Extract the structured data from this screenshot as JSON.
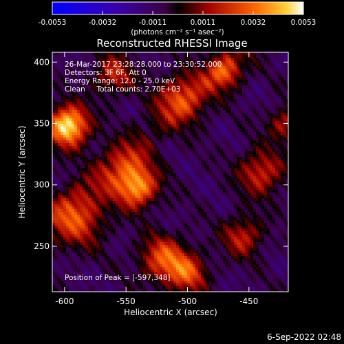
{
  "colorbar": {
    "ticks": [
      "-0.0053",
      "-0.0032",
      "-0.0011",
      "0.0011",
      "0.0032",
      "0.0053"
    ],
    "units_label": "(photons cm⁻² s⁻¹ asec⁻²)"
  },
  "chart_data": {
    "type": "heatmap",
    "title": "Reconstructed RHESSI Image",
    "xlabel": "Heliocentric X (arcsec)",
    "ylabel": "Heliocentric Y (arcsec)",
    "xlim": [
      -610,
      -418
    ],
    "ylim": [
      213,
      408
    ],
    "x_ticks": [
      -600,
      -550,
      -500,
      -450
    ],
    "y_ticks": [
      250,
      300,
      350,
      400
    ],
    "color_range": [
      -0.0053,
      0.0053
    ],
    "peak_position": [
      -597,
      348
    ],
    "annotations": [
      "26-Mar-2017 23:28:28.000 to 23:30:52.000",
      "Detectors: 3F 6F, Att 0",
      "Energy Range: 12.0 - 25.0 keV",
      "Clean     Total counts: 2.70E+03"
    ],
    "peak_label": "Position of Peak = [-597,348]"
  },
  "footer": {
    "date": "6-Sep-2022 02:48"
  }
}
